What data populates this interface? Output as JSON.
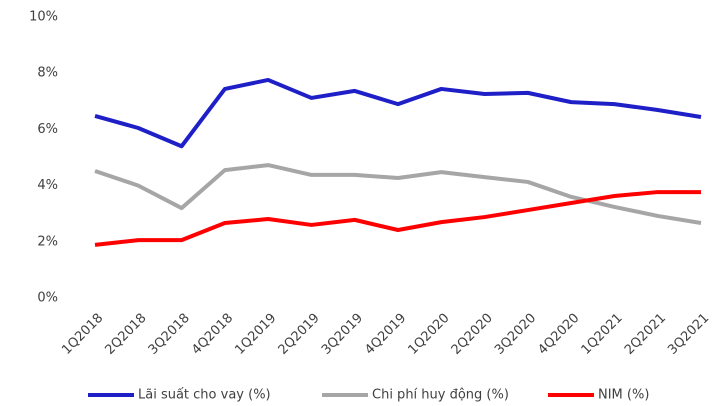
{
  "chart_data": {
    "type": "line",
    "categories": [
      "1Q2018",
      "2Q2018",
      "3Q2018",
      "4Q2018",
      "1Q2019",
      "2Q2019",
      "3Q2019",
      "4Q2019",
      "1Q2020",
      "2Q2020",
      "3Q2020",
      "4Q2020",
      "1Q2021",
      "2Q2021",
      "3Q2021"
    ],
    "series": [
      {
        "name": "Lãi suất cho vay (%)",
        "color": "#1f1fc8",
        "values": [
          6.48,
          6.05,
          5.4,
          7.44,
          7.76,
          7.12,
          7.37,
          6.9,
          7.44,
          7.26,
          7.3,
          6.97,
          6.9,
          6.69,
          6.44
        ]
      },
      {
        "name": "Chi phí huy động (%)",
        "color": "#a6a6a6",
        "values": [
          4.52,
          4.0,
          3.2,
          4.55,
          4.73,
          4.38,
          4.38,
          4.27,
          4.48,
          4.3,
          4.13,
          3.6,
          3.24,
          2.92,
          2.67
        ]
      },
      {
        "name": "NIM (%)",
        "color": "#ff0000",
        "values": [
          1.89,
          2.06,
          2.06,
          2.67,
          2.81,
          2.6,
          2.78,
          2.42,
          2.7,
          2.88,
          3.13,
          3.38,
          3.63,
          3.77,
          3.77
        ]
      }
    ],
    "ylim": [
      0,
      10
    ],
    "yticks": [
      {
        "value": 0,
        "label": "0%"
      },
      {
        "value": 2,
        "label": "2%"
      },
      {
        "value": 4,
        "label": "4%"
      },
      {
        "value": 6,
        "label": "6%"
      },
      {
        "value": 8,
        "label": "8%"
      },
      {
        "value": 10,
        "label": "10%"
      }
    ],
    "legend": "bottom"
  }
}
